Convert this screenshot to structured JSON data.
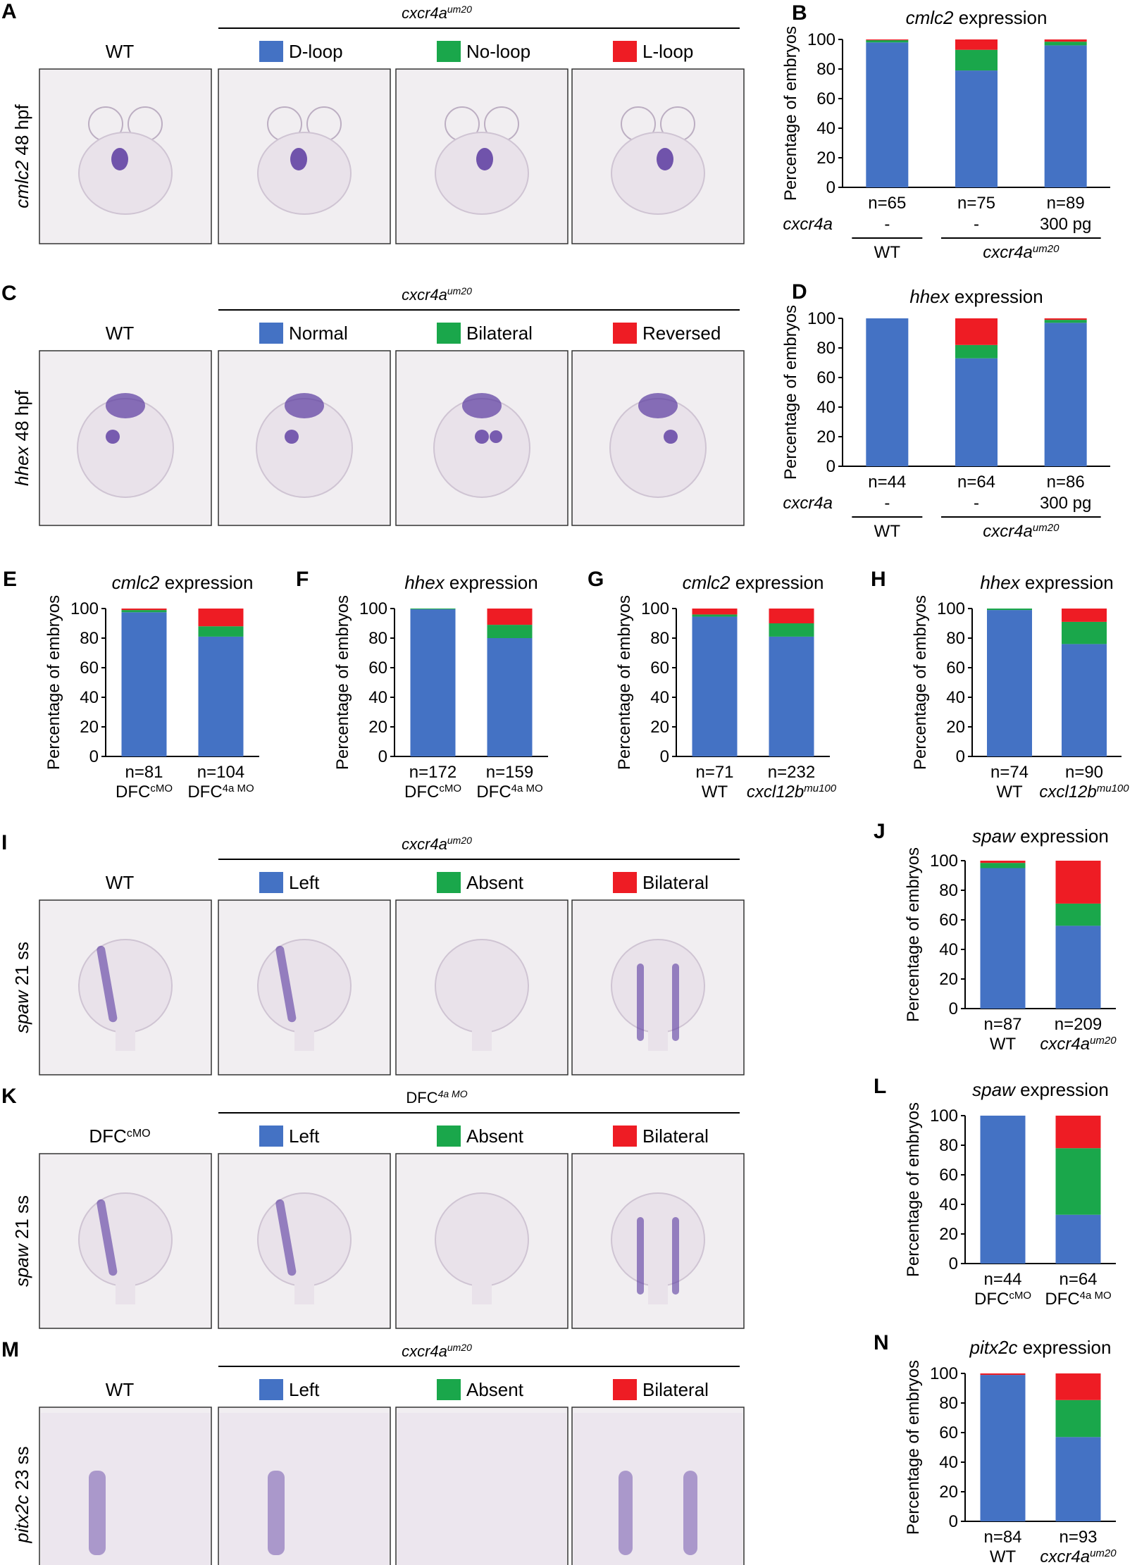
{
  "colors": {
    "d_loop": "#4472c4",
    "no_loop": "#1aa74b",
    "l_loop": "#ee1c24",
    "axis": "#000000",
    "embryo_fill": "#e9e2ea",
    "stain": "#5a3aa0",
    "photo_bg": "#f1eef1"
  },
  "panel_A": {
    "letter": "A",
    "header": "cxcr4a",
    "header_sup": "um20",
    "side_label_italic": "cmlc2",
    "side_label_plain": " 48 hpf",
    "wt_label": "WT",
    "legend": [
      "D-loop",
      "No-loop",
      "L-loop"
    ]
  },
  "panel_C": {
    "letter": "C",
    "header": "cxcr4a",
    "header_sup": "um20",
    "side_label_italic": "hhex",
    "side_label_plain": " 48 hpf",
    "wt_label": "WT",
    "legend": [
      "Normal",
      "Bilateral",
      "Reversed"
    ]
  },
  "panel_I": {
    "letter": "I",
    "header": "cxcr4a",
    "header_sup": "um20",
    "side_label_italic": "spaw",
    "side_label_plain": " 21 ss",
    "wt_label": "WT",
    "legend": [
      "Left",
      "Absent",
      "Bilateral"
    ]
  },
  "panel_K": {
    "letter": "K",
    "header": "DFC",
    "header_sup": "4a MO",
    "side_label_italic": "spaw",
    "side_label_plain": " 21 ss",
    "wt_label": "DFC",
    "wt_label_sup": "cMO",
    "legend": [
      "Left",
      "Absent",
      "Bilateral"
    ]
  },
  "panel_M": {
    "letter": "M",
    "header": "cxcr4a",
    "header_sup": "um20",
    "side_label_italic": "pitx2c",
    "side_label_plain": " 23 ss",
    "wt_label": "WT",
    "legend": [
      "Left",
      "Absent",
      "Bilateral"
    ]
  },
  "chart_data": [
    {
      "id": "B",
      "type": "bar",
      "stacked": true,
      "title_italic": "cmlc2",
      "title_plain": " expression",
      "ylabel": "Percentage of embryos",
      "ylim": [
        0,
        100
      ],
      "yticks": [
        "0",
        "20",
        "40",
        "60",
        "80",
        "100"
      ],
      "categories": [
        "n=65",
        "n=75",
        "n=89"
      ],
      "row_label": "cxcr4a",
      "row_values": [
        "-",
        "-",
        "300 pg"
      ],
      "group_labels": [
        "WT",
        "cxcr4a"
      ],
      "group_sup": [
        "",
        "um20"
      ],
      "series": [
        {
          "values": [
            98,
            79,
            96
          ]
        },
        {
          "values": [
            1.5,
            14,
            2.5
          ]
        },
        {
          "values": [
            0.5,
            7,
            1.5
          ]
        }
      ]
    },
    {
      "id": "D",
      "type": "bar",
      "stacked": true,
      "title_italic": "hhex",
      "title_plain": " expression",
      "ylabel": "Percentage of embryos",
      "ylim": [
        0,
        100
      ],
      "yticks": [
        "0",
        "20",
        "40",
        "60",
        "80",
        "100"
      ],
      "categories": [
        "n=44",
        "n=64",
        "n=86"
      ],
      "row_label": "cxcr4a",
      "row_values": [
        "-",
        "-",
        "300 pg"
      ],
      "group_labels": [
        "WT",
        "cxcr4a"
      ],
      "group_sup": [
        "",
        "um20"
      ],
      "series": [
        {
          "values": [
            100,
            73,
            97
          ]
        },
        {
          "values": [
            0,
            9,
            2
          ]
        },
        {
          "values": [
            0,
            18,
            1
          ]
        }
      ]
    },
    {
      "id": "E",
      "type": "bar",
      "stacked": true,
      "title_italic": "cmlc2",
      "title_plain": " expression",
      "ylabel": "Percentage of embryos",
      "ylim": [
        0,
        100
      ],
      "yticks": [
        "0",
        "20",
        "40",
        "60",
        "80",
        "100"
      ],
      "categories": [
        "n=81",
        "n=104"
      ],
      "sub_labels": [
        "DFC",
        "DFC"
      ],
      "sub_sups": [
        "cMO",
        "4a MO"
      ],
      "series": [
        {
          "values": [
            97.5,
            81
          ]
        },
        {
          "values": [
            1.5,
            7
          ]
        },
        {
          "values": [
            1,
            12
          ]
        }
      ]
    },
    {
      "id": "F",
      "type": "bar",
      "stacked": true,
      "title_italic": "hhex",
      "title_plain": " expression",
      "ylabel": "Percentage of embryos",
      "ylim": [
        0,
        100
      ],
      "yticks": [
        "0",
        "20",
        "40",
        "60",
        "80",
        "100"
      ],
      "categories": [
        "n=172",
        "n=159"
      ],
      "sub_labels": [
        "DFC",
        "DFC"
      ],
      "sub_sups": [
        "cMO",
        "4a MO"
      ],
      "series": [
        {
          "values": [
            99.5,
            80
          ]
        },
        {
          "values": [
            0.5,
            9
          ]
        },
        {
          "values": [
            0,
            11
          ]
        }
      ]
    },
    {
      "id": "G",
      "type": "bar",
      "stacked": true,
      "title_italic": "cmlc2",
      "title_plain": " expression",
      "ylabel": "Percentage of embryos",
      "ylim": [
        0,
        100
      ],
      "yticks": [
        "0",
        "20",
        "40",
        "60",
        "80",
        "100"
      ],
      "categories": [
        "n=71",
        "n=232"
      ],
      "sub_labels": [
        "WT",
        "cxcl12b"
      ],
      "sub_sups": [
        "",
        "mu100"
      ],
      "series": [
        {
          "values": [
            94.5,
            81
          ]
        },
        {
          "values": [
            1.5,
            9
          ]
        },
        {
          "values": [
            4,
            10
          ]
        }
      ]
    },
    {
      "id": "H",
      "type": "bar",
      "stacked": true,
      "title_italic": "hhex",
      "title_plain": " expression",
      "ylabel": "Percentage of embryos",
      "ylim": [
        0,
        100
      ],
      "yticks": [
        "0",
        "20",
        "40",
        "60",
        "80",
        "100"
      ],
      "categories": [
        "n=74",
        "n=90"
      ],
      "sub_labels": [
        "WT",
        "cxcl12b"
      ],
      "sub_sups": [
        "",
        "mu100"
      ],
      "series": [
        {
          "values": [
            99,
            76
          ]
        },
        {
          "values": [
            1,
            15
          ]
        },
        {
          "values": [
            0,
            9
          ]
        }
      ]
    },
    {
      "id": "J",
      "type": "bar",
      "stacked": true,
      "title_italic": "spaw",
      "title_plain": " expression",
      "ylabel": "Percentage of embryos",
      "ylim": [
        0,
        100
      ],
      "yticks": [
        "0",
        "20",
        "40",
        "60",
        "80",
        "100"
      ],
      "categories": [
        "n=87",
        "n=209"
      ],
      "sub_labels": [
        "WT",
        "cxcr4a"
      ],
      "sub_sups": [
        "",
        "um20"
      ],
      "series": [
        {
          "values": [
            95,
            56
          ]
        },
        {
          "values": [
            3.5,
            15
          ]
        },
        {
          "values": [
            1.5,
            29
          ]
        }
      ]
    },
    {
      "id": "L",
      "type": "bar",
      "stacked": true,
      "title_italic": "spaw",
      "title_plain": " expression",
      "ylabel": "Percentage of embryos",
      "ylim": [
        0,
        100
      ],
      "yticks": [
        "0",
        "20",
        "40",
        "60",
        "80",
        "100"
      ],
      "categories": [
        "n=44",
        "n=64"
      ],
      "sub_labels": [
        "DFC",
        "DFC"
      ],
      "sub_sups": [
        "cMO",
        "4a MO"
      ],
      "series": [
        {
          "values": [
            100,
            33
          ]
        },
        {
          "values": [
            0,
            45
          ]
        },
        {
          "values": [
            0,
            22
          ]
        }
      ]
    },
    {
      "id": "N",
      "type": "bar",
      "stacked": true,
      "title_italic": "pitx2c",
      "title_plain": " expression",
      "ylabel": "Percentage of embryos",
      "ylim": [
        0,
        100
      ],
      "yticks": [
        "0",
        "20",
        "40",
        "60",
        "80",
        "100"
      ],
      "categories": [
        "n=84",
        "n=93"
      ],
      "sub_labels": [
        "WT",
        "cxcr4a"
      ],
      "sub_sups": [
        "",
        "um20"
      ],
      "series": [
        {
          "values": [
            99,
            57
          ]
        },
        {
          "values": [
            0,
            25
          ]
        },
        {
          "values": [
            1,
            18
          ]
        }
      ]
    }
  ]
}
